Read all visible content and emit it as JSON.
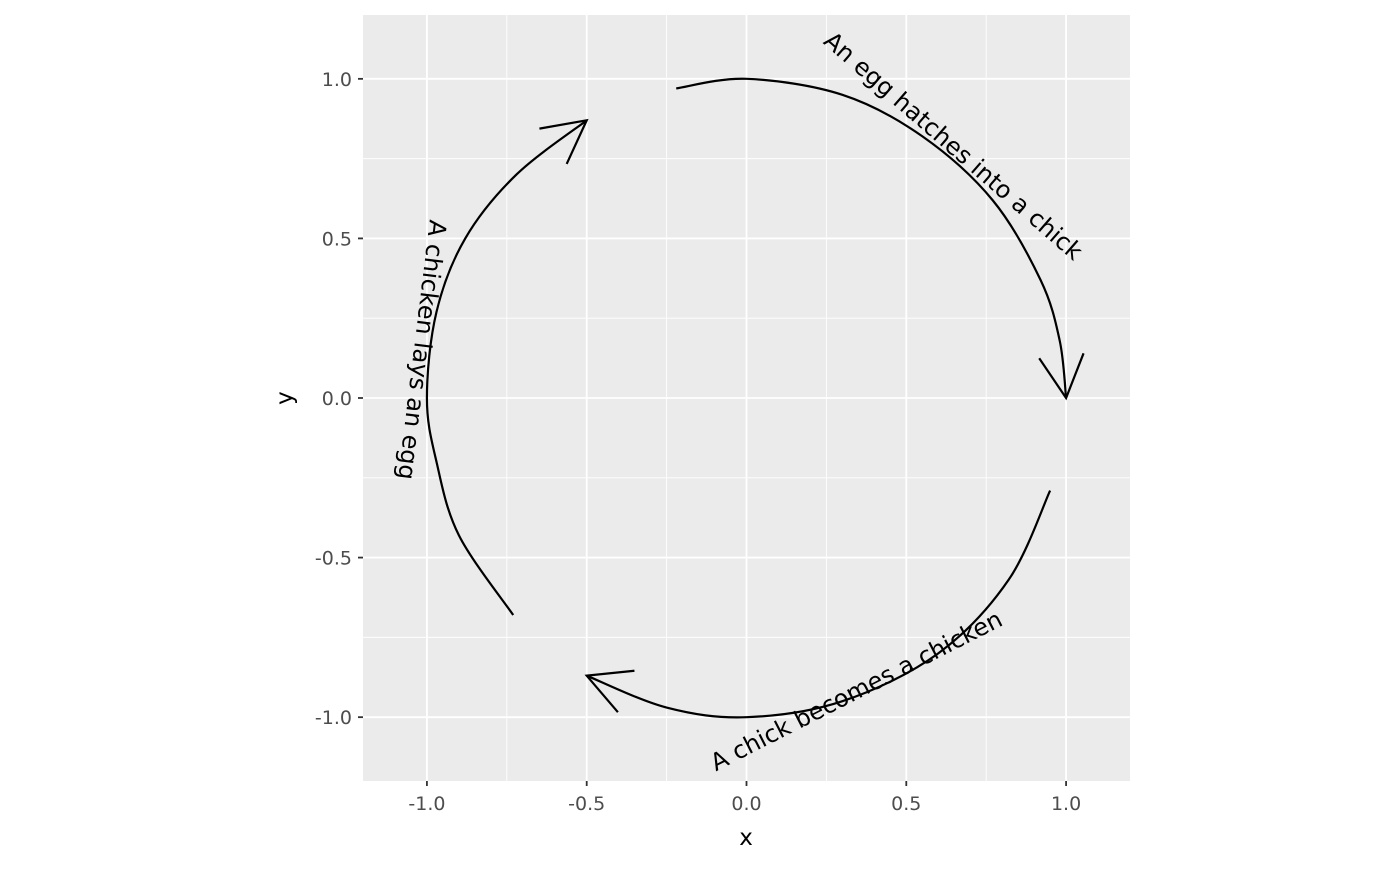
{
  "chart_data": {
    "type": "line",
    "title": "",
    "xlabel": "x",
    "ylabel": "y",
    "xlim": [
      -1.2,
      1.2
    ],
    "ylim": [
      -1.2,
      1.2
    ],
    "x_ticks": [
      -1.0,
      -0.5,
      0.0,
      0.5,
      1.0
    ],
    "y_ticks": [
      -1.0,
      -0.5,
      0.0,
      0.5,
      1.0
    ],
    "x_tick_labels": [
      "-1.0",
      "-0.5",
      "0.0",
      "0.5",
      "1.0"
    ],
    "y_tick_labels": [
      "-1.0",
      "-0.5",
      "0.0",
      "0.5",
      "1.0"
    ],
    "grid": true,
    "legend": "none",
    "background_color": "#ebebeb",
    "grid_color": "#ffffff",
    "line_color": "#000000",
    "arrows": [
      {
        "label": "An egg hatches into a chick",
        "start": [
          -0.22,
          0.97
        ],
        "end": [
          1.0,
          0.0
        ],
        "path": [
          [
            -0.22,
            0.97
          ],
          [
            0.0,
            1.0
          ],
          [
            0.3,
            0.95
          ],
          [
            0.55,
            0.82
          ],
          [
            0.77,
            0.62
          ],
          [
            0.92,
            0.37
          ],
          [
            0.98,
            0.18
          ],
          [
            1.0,
            0.0
          ]
        ]
      },
      {
        "label": "A chick becomes a chicken",
        "start": [
          0.95,
          -0.29
        ],
        "end": [
          -0.5,
          -0.87
        ],
        "path": [
          [
            0.95,
            -0.29
          ],
          [
            0.82,
            -0.57
          ],
          [
            0.6,
            -0.8
          ],
          [
            0.3,
            -0.95
          ],
          [
            0.0,
            -1.0
          ],
          [
            -0.25,
            -0.97
          ],
          [
            -0.5,
            -0.87
          ]
        ]
      },
      {
        "label": "A chicken lays an egg",
        "start": [
          -0.73,
          -0.68
        ],
        "end": [
          -0.5,
          0.87
        ],
        "path": [
          [
            -0.73,
            -0.68
          ],
          [
            -0.9,
            -0.43
          ],
          [
            -0.97,
            -0.2
          ],
          [
            -1.0,
            0.0
          ],
          [
            -0.97,
            0.27
          ],
          [
            -0.88,
            0.5
          ],
          [
            -0.72,
            0.7
          ],
          [
            -0.5,
            0.87
          ]
        ]
      }
    ]
  }
}
